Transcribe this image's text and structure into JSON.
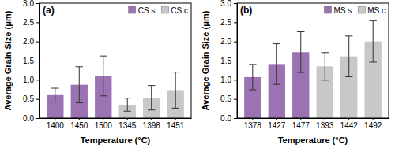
{
  "chart_data": [
    {
      "type": "bar",
      "title": "(a)",
      "x_label": "Temperature (°C)",
      "y_label": "Average Grain Size (μm)",
      "categories": [
        "1400",
        "1450",
        "1500",
        "1345",
        "1398",
        "1451"
      ],
      "series": [
        {
          "name": "CS s",
          "color": "#9b73b3",
          "values": [
            0.6,
            0.87,
            1.1,
            null,
            null,
            null
          ],
          "errors": [
            0.18,
            0.47,
            0.52,
            null,
            null,
            null
          ]
        },
        {
          "name": "CS c",
          "color": "#c8c8c8",
          "values": [
            null,
            null,
            null,
            0.35,
            0.53,
            0.73
          ],
          "errors": [
            null,
            null,
            null,
            0.17,
            0.32,
            0.47
          ]
        }
      ],
      "ylim": [
        0,
        3
      ],
      "yticks": [
        {
          "value": 0,
          "label": "0.0"
        },
        0.5,
        {
          "value": 1,
          "label": "1.0"
        },
        1.5,
        {
          "value": 2,
          "label": "2.0"
        },
        2.5,
        {
          "value": 3,
          "label": "3.0"
        }
      ],
      "grid": false,
      "legend": "upper right"
    },
    {
      "type": "bar",
      "title": "(b)",
      "x_label": "Temperature (°C)",
      "y_label": "Average Grain Size (μm)",
      "categories": [
        "1378",
        "1427",
        "1477",
        "1393",
        "1442",
        "1492"
      ],
      "series": [
        {
          "name": "MS s",
          "color": "#9b73b3",
          "values": [
            1.07,
            1.41,
            1.72,
            null,
            null,
            null
          ],
          "errors": [
            0.33,
            0.53,
            0.53,
            null,
            null,
            null
          ]
        },
        {
          "name": "MS c",
          "color": "#c8c8c8",
          "values": [
            null,
            null,
            null,
            1.35,
            1.61,
            2.0
          ],
          "errors": [
            null,
            null,
            null,
            0.36,
            0.53,
            0.54
          ]
        }
      ],
      "ylim": [
        0,
        3
      ],
      "yticks": [
        {
          "value": 0,
          "label": "0.0"
        },
        0.5,
        {
          "value": 1,
          "label": "1.0"
        },
        1.5,
        {
          "value": 2,
          "label": "2.0"
        },
        2.5,
        {
          "value": 3,
          "label": "3.0"
        }
      ],
      "grid": false,
      "legend": "upper right"
    }
  ]
}
